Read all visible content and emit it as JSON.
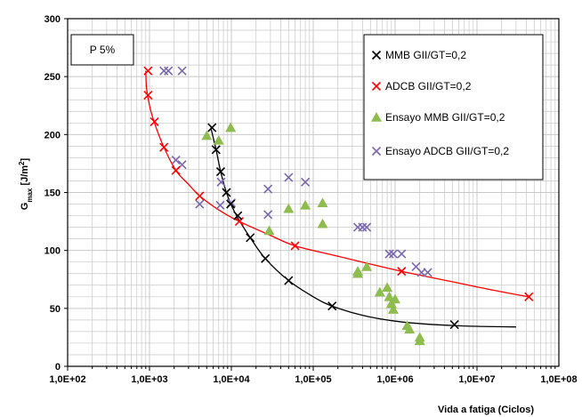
{
  "chart_data": {
    "type": "scatter",
    "annotation": "P 5%",
    "xlabel": "Vida a fatiga (Ciclos)",
    "ylabel": {
      "main": "G",
      "sub": "max",
      "unit_pre": " [J/m",
      "unit_sup": "2",
      "unit_post": "]"
    },
    "x_scale": "log",
    "xlim": [
      100,
      100000000
    ],
    "ylim": [
      0,
      300
    ],
    "x_ticks": [
      100,
      1000,
      10000,
      100000,
      1000000,
      10000000,
      100000000
    ],
    "x_tick_labels": [
      "1,0E+02",
      "1,0E+03",
      "1,0E+04",
      "1,0E+05",
      "1,0E+06",
      "1,0E+07",
      "1,0E+08"
    ],
    "y_ticks": [
      0,
      50,
      100,
      150,
      200,
      250,
      300
    ],
    "y_tick_labels": [
      "0",
      "50",
      "100",
      "150",
      "200",
      "250",
      "300"
    ],
    "grid": true,
    "legend_position": "top-right",
    "series": [
      {
        "name": "MMB GII/GT=0,2",
        "marker": "x",
        "color": "#000000",
        "line": true,
        "points": [
          [
            5800,
            206
          ],
          [
            6500,
            187
          ],
          [
            7400,
            168
          ],
          [
            8700,
            150
          ],
          [
            9800,
            140
          ],
          [
            12000,
            130
          ],
          [
            17000,
            111
          ],
          [
            26000,
            93
          ],
          [
            50000,
            74
          ],
          [
            170000,
            52
          ],
          [
            5300000,
            36
          ]
        ],
        "curve": [
          [
            5600,
            206
          ],
          [
            6500,
            187
          ],
          [
            7400,
            168
          ],
          [
            8700,
            150
          ],
          [
            10000,
            139
          ],
          [
            12000,
            128
          ],
          [
            17000,
            111
          ],
          [
            26000,
            93
          ],
          [
            50000,
            74
          ],
          [
            100000,
            60
          ],
          [
            170000,
            52
          ],
          [
            400000,
            44
          ],
          [
            1000000,
            39
          ],
          [
            3000000,
            36
          ],
          [
            10000000,
            34.5
          ],
          [
            30000000,
            34
          ]
        ]
      },
      {
        "name": "ADCB GII/GT=0,2",
        "marker": "x",
        "color": "#ff0000",
        "line": true,
        "points": [
          [
            960,
            255
          ],
          [
            960,
            234
          ],
          [
            1150,
            211
          ],
          [
            1500,
            189
          ],
          [
            2100,
            169
          ],
          [
            4100,
            147
          ],
          [
            12500,
            125
          ],
          [
            60000,
            104
          ],
          [
            1200000,
            82
          ],
          [
            43000000,
            60
          ]
        ],
        "curve": [
          [
            900,
            255
          ],
          [
            920,
            240
          ],
          [
            1000,
            225
          ],
          [
            1150,
            210
          ],
          [
            1500,
            189
          ],
          [
            2100,
            169
          ],
          [
            3000,
            157
          ],
          [
            4100,
            147
          ],
          [
            7000,
            135
          ],
          [
            12500,
            125
          ],
          [
            30000,
            113
          ],
          [
            60000,
            104
          ],
          [
            200000,
            95
          ],
          [
            1200000,
            82
          ],
          [
            5000000,
            73
          ],
          [
            15000000,
            66
          ],
          [
            43000000,
            60
          ]
        ]
      },
      {
        "name": "Ensayo MMB GII/GT=0,2",
        "marker": "triangle",
        "color": "#8fbc4f",
        "line": false,
        "points": [
          [
            5000,
            199
          ],
          [
            7000,
            195
          ],
          [
            9800,
            206
          ],
          [
            29000,
            117
          ],
          [
            50000,
            136
          ],
          [
            80000,
            139
          ],
          [
            130000,
            123
          ],
          [
            130000,
            141
          ],
          [
            350000,
            82
          ],
          [
            350000,
            80
          ],
          [
            450000,
            86
          ],
          [
            650000,
            64
          ],
          [
            800000,
            68
          ],
          [
            850000,
            60
          ],
          [
            900000,
            54
          ],
          [
            950000,
            49
          ],
          [
            1000000,
            58
          ],
          [
            1400000,
            35
          ],
          [
            1500000,
            32
          ],
          [
            2000000,
            25
          ],
          [
            2000000,
            22
          ]
        ]
      },
      {
        "name": "Ensayo ADCB GII/GT=0,2",
        "marker": "x",
        "color": "#7b68b0",
        "line": false,
        "points": [
          [
            1500,
            255
          ],
          [
            1700,
            255
          ],
          [
            2500,
            255
          ],
          [
            2100,
            178
          ],
          [
            2500,
            174
          ],
          [
            4100,
            140
          ],
          [
            7300,
            139
          ],
          [
            7500,
            159
          ],
          [
            10000,
            141
          ],
          [
            28000,
            153
          ],
          [
            28000,
            131
          ],
          [
            50000,
            163
          ],
          [
            80000,
            159
          ],
          [
            350000,
            120
          ],
          [
            400000,
            120
          ],
          [
            450000,
            120
          ],
          [
            850000,
            97
          ],
          [
            950000,
            97
          ],
          [
            1200000,
            97
          ],
          [
            1800000,
            86
          ],
          [
            2100000,
            81
          ],
          [
            2500000,
            81
          ]
        ]
      }
    ]
  }
}
